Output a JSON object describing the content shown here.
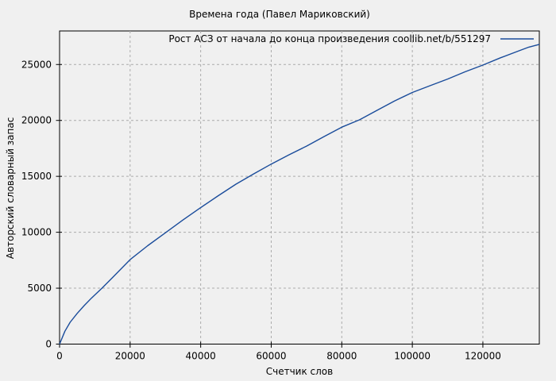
{
  "window": {
    "title": "Времена года (Павел Мариковский)"
  },
  "colors": {
    "background": "#f0f0f0",
    "plot_background": "#f0f0f0",
    "border": "#000000",
    "grid": "#ababab",
    "series_line": "#1a4c9b",
    "text": "#000000"
  },
  "chart_data": {
    "type": "line",
    "title": "Времена года (Павел Мариковский)",
    "xlabel": "Счетчик слов",
    "ylabel": "Авторский словарный запас",
    "xlim": [
      0,
      136000
    ],
    "ylim": [
      0,
      28000
    ],
    "grid": true,
    "grid_style": "dashed",
    "x_ticks": [
      0,
      20000,
      40000,
      60000,
      80000,
      100000,
      120000
    ],
    "x_tick_labels": [
      "0",
      "20000",
      "40000",
      "60000",
      "80000",
      "100000",
      "120000"
    ],
    "y_ticks": [
      0,
      5000,
      10000,
      15000,
      20000,
      25000
    ],
    "y_tick_labels": [
      "0",
      "5000",
      "10000",
      "15000",
      "20000",
      "25000"
    ],
    "legend": {
      "position": "top-right-inside",
      "entries": [
        {
          "label": "Рост АСЗ от начала до конца произведения coollib.net/b/551297",
          "color": "#1a4c9b"
        }
      ]
    },
    "series": [
      {
        "name": "Рост АСЗ от начала до конца произведения coollib.net/b/551297",
        "color": "#1a4c9b",
        "points": [
          [
            0,
            0
          ],
          [
            1500,
            1150
          ],
          [
            3000,
            1950
          ],
          [
            5000,
            2750
          ],
          [
            7000,
            3450
          ],
          [
            9000,
            4100
          ],
          [
            12000,
            5000
          ],
          [
            15000,
            5950
          ],
          [
            20000,
            7550
          ],
          [
            25000,
            8800
          ],
          [
            30000,
            9950
          ],
          [
            35000,
            11100
          ],
          [
            40000,
            12200
          ],
          [
            45000,
            13270
          ],
          [
            50000,
            14300
          ],
          [
            55000,
            15220
          ],
          [
            60000,
            16100
          ],
          [
            65000,
            16920
          ],
          [
            70000,
            17700
          ],
          [
            75000,
            18560
          ],
          [
            80000,
            19400
          ],
          [
            85000,
            20050
          ],
          [
            90000,
            20900
          ],
          [
            95000,
            21750
          ],
          [
            100000,
            22500
          ],
          [
            105000,
            23100
          ],
          [
            110000,
            23700
          ],
          [
            115000,
            24350
          ],
          [
            120000,
            24950
          ],
          [
            125000,
            25600
          ],
          [
            130000,
            26200
          ],
          [
            133000,
            26550
          ],
          [
            136000,
            26800
          ]
        ]
      }
    ]
  }
}
